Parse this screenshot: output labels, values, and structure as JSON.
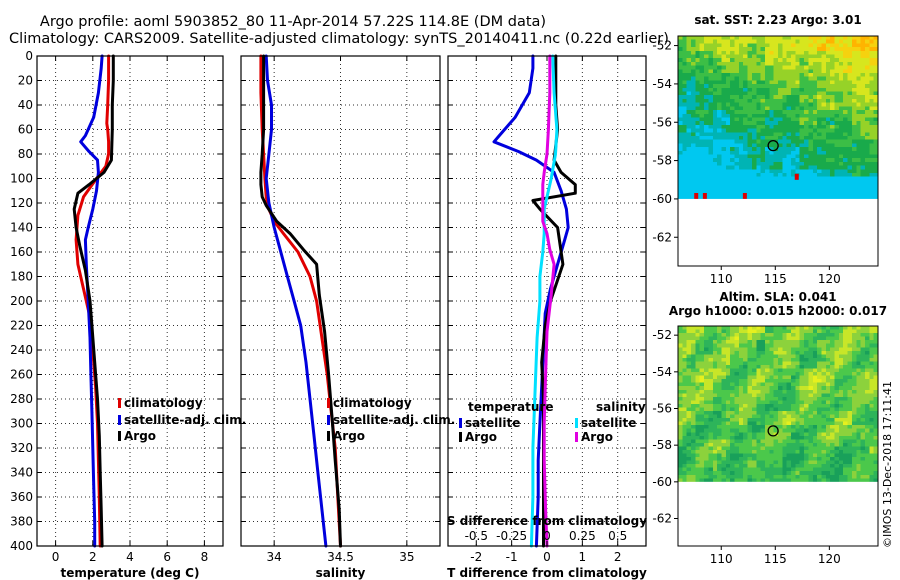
{
  "header": {
    "line1": "Argo profile: aoml 5903852_80 11-Apr-2014 57.22S 114.8E (DM data)",
    "line2": "Climatology: CARS2009. Satellite-adjusted climatology: synTS_20140411.nc (0.22d earlier)"
  },
  "credit": "©IMOS 13-Dec-2018 17:11:41",
  "colors": {
    "climatology": "#e00000",
    "satellite": "#0000dd",
    "argo": "#000000",
    "salinity_satellite": "#00e0ff",
    "salinity_argo": "#e000e0",
    "missing": "#ffffff"
  },
  "chart_data": [
    {
      "id": "temperature",
      "type": "line",
      "xlabel": "temperature (deg C)",
      "ylabel": "",
      "xlim": [
        -1,
        9
      ],
      "ylim": [
        400,
        0
      ],
      "xticks": [
        0,
        2,
        4,
        6,
        8
      ],
      "xtick_labels": [
        "0",
        "2",
        "4",
        "6",
        "8"
      ],
      "yticks": [
        0,
        20,
        40,
        60,
        80,
        100,
        120,
        140,
        160,
        180,
        200,
        220,
        240,
        260,
        280,
        300,
        320,
        340,
        360,
        380,
        400
      ],
      "grid": true,
      "legend": {
        "placement": "center-right",
        "entries": [
          {
            "name": "climatology",
            "series": "climatology"
          },
          {
            "name": "satellite-adj. clim.",
            "series": "satellite"
          },
          {
            "name": "Argo",
            "series": "argo"
          }
        ]
      },
      "series": [
        {
          "name": "climatology",
          "color_key": "climatology",
          "x": [
            2.85,
            2.85,
            2.8,
            2.75,
            2.8,
            2.85,
            2.85,
            2.7,
            2.2,
            1.5,
            1.2,
            1.1,
            1.2,
            1.5,
            1.8,
            2.0,
            2.15,
            2.25,
            2.3,
            2.35,
            2.4
          ],
          "y": [
            0,
            20,
            40,
            55,
            60,
            70,
            80,
            90,
            100,
            115,
            130,
            150,
            170,
            190,
            210,
            240,
            270,
            300,
            330,
            360,
            400
          ]
        },
        {
          "name": "satellite-adj. clim.",
          "color_key": "satellite",
          "x": [
            2.5,
            2.45,
            2.3,
            2.05,
            1.6,
            1.35,
            1.8,
            2.25,
            2.3,
            2.2,
            2.0,
            1.75,
            1.6,
            1.65,
            1.75,
            1.85,
            1.9,
            1.95,
            2.0,
            2.05,
            2.1,
            2.1
          ],
          "y": [
            0,
            10,
            30,
            50,
            65,
            70,
            78,
            85,
            95,
            110,
            125,
            140,
            150,
            170,
            200,
            230,
            260,
            290,
            320,
            350,
            380,
            400
          ]
        },
        {
          "name": "Argo",
          "color_key": "argo",
          "x": [
            3.1,
            3.1,
            3.05,
            3.05,
            3.0,
            2.6,
            1.8,
            1.2,
            1.0,
            1.1,
            1.3,
            1.6,
            1.85,
            1.95,
            2.1,
            2.25,
            2.35,
            2.4,
            2.45,
            2.5
          ],
          "y": [
            0,
            20,
            40,
            60,
            85,
            95,
            105,
            112,
            125,
            140,
            155,
            175,
            200,
            220,
            250,
            280,
            310,
            340,
            370,
            400
          ]
        }
      ]
    },
    {
      "id": "salinity",
      "type": "line",
      "xlabel": "salinity",
      "ylabel": "",
      "xlim": [
        33.75,
        35.25
      ],
      "ylim": [
        400,
        0
      ],
      "xticks": [
        34,
        34.5,
        35
      ],
      "xtick_labels": [
        "34",
        "34.5",
        "35"
      ],
      "grid": true,
      "legend": {
        "placement": "bottom-right",
        "entries": [
          {
            "name": "climatology",
            "series": "climatology"
          },
          {
            "name": "satellite-adj. clim.",
            "series": "satellite"
          },
          {
            "name": "Argo",
            "series": "argo"
          }
        ]
      },
      "series": [
        {
          "name": "climatology",
          "color_key": "climatology",
          "x": [
            33.9,
            33.9,
            33.91,
            33.92,
            33.93,
            33.94,
            33.96,
            34.0,
            34.07,
            34.18,
            34.27,
            34.32,
            34.36,
            34.4,
            34.43,
            34.46,
            34.48,
            34.5
          ],
          "y": [
            0,
            30,
            60,
            80,
            100,
            115,
            125,
            135,
            145,
            160,
            180,
            200,
            230,
            260,
            290,
            320,
            360,
            400
          ]
        },
        {
          "name": "satellite-adj. clim.",
          "color_key": "satellite",
          "x": [
            33.94,
            33.95,
            33.98,
            33.98,
            33.96,
            33.94,
            33.96,
            34.0,
            34.05,
            34.1,
            34.15,
            34.2,
            34.24,
            34.27,
            34.3,
            34.33,
            34.36,
            34.39
          ],
          "y": [
            0,
            20,
            40,
            60,
            80,
            100,
            120,
            140,
            160,
            180,
            200,
            220,
            250,
            280,
            310,
            340,
            370,
            400
          ]
        },
        {
          "name": "Argo",
          "color_key": "argo",
          "x": [
            33.92,
            33.92,
            33.92,
            33.91,
            33.9,
            33.9,
            33.91,
            33.94,
            34.02,
            34.12,
            34.22,
            34.32,
            34.34,
            34.38,
            34.41,
            34.44,
            34.46,
            34.49,
            34.5
          ],
          "y": [
            0,
            30,
            60,
            80,
            95,
            105,
            115,
            122,
            135,
            145,
            158,
            170,
            195,
            225,
            260,
            300,
            330,
            370,
            400
          ]
        }
      ]
    },
    {
      "id": "difference",
      "type": "line",
      "xlabel": "T difference from climatology",
      "xlabel_top": "S difference from climatology",
      "ylabel": "",
      "xlim": [
        -2.8,
        2.8
      ],
      "ylim": [
        400,
        0
      ],
      "xticks": [
        -2,
        -1,
        0,
        1,
        2
      ],
      "xtick_labels": [
        "-2",
        "-1",
        "0",
        "1",
        "2"
      ],
      "xticks_s": [
        -0.5,
        -0.25,
        0,
        0.25,
        0.5
      ],
      "xtick_labels_s": [
        "-0.5",
        "-0.25",
        "0",
        "0.25",
        "0.5"
      ],
      "grid": true,
      "legend": {
        "temperature_title": "temperature",
        "salinity_title": "salinity",
        "entries": [
          {
            "name": "satellite",
            "series": "temp-satellite"
          },
          {
            "name": "Argo",
            "series": "temp-argo"
          },
          {
            "name": "satellite",
            "series": "sal-satellite"
          },
          {
            "name": "Argo",
            "series": "sal-argo"
          }
        ]
      },
      "series": [
        {
          "name": "temp-satellite",
          "color_key": "satellite",
          "x": [
            -0.4,
            -0.4,
            -0.5,
            -0.9,
            -1.35,
            -1.5,
            -0.8,
            -0.3,
            0.2,
            0.4,
            0.55,
            0.6,
            0.5,
            0.3,
            0.1,
            -0.05,
            -0.1,
            -0.15,
            -0.2,
            -0.25,
            -0.25,
            -0.3
          ],
          "y": [
            0,
            10,
            30,
            50,
            65,
            70,
            78,
            85,
            95,
            110,
            125,
            140,
            150,
            170,
            190,
            210,
            240,
            270,
            300,
            330,
            360,
            400
          ]
        },
        {
          "name": "temp-argo",
          "color_key": "argo",
          "x": [
            0.25,
            0.25,
            0.25,
            0.3,
            0.2,
            0.4,
            0.8,
            0.8,
            -0.4,
            -0.2,
            0.3,
            0.45,
            0.1,
            -0.05,
            -0.15,
            -0.1,
            -0.1,
            -0.1,
            -0.1,
            -0.1
          ],
          "y": [
            0,
            20,
            40,
            60,
            85,
            95,
            105,
            112,
            118,
            125,
            140,
            170,
            200,
            220,
            250,
            280,
            310,
            340,
            370,
            400
          ]
        },
        {
          "name": "sal-satellite",
          "color_key": "salinity_satellite",
          "x": [
            0.04,
            0.05,
            0.07,
            0.06,
            0.03,
            0.0,
            -0.02,
            -0.02,
            -0.02,
            -0.03,
            -0.05,
            -0.05,
            -0.07,
            -0.08,
            -0.09,
            -0.1,
            -0.1,
            -0.11
          ],
          "y": [
            0,
            30,
            60,
            80,
            100,
            115,
            125,
            135,
            145,
            160,
            180,
            200,
            230,
            260,
            290,
            320,
            360,
            400
          ]
        },
        {
          "name": "sal-argo",
          "color_key": "salinity_argo",
          "x": [
            0.02,
            0.02,
            0.01,
            0.0,
            -0.02,
            -0.03,
            -0.03,
            -0.03,
            -0.03,
            0.0,
            0.02,
            0.05,
            0.03,
            0.0,
            -0.01,
            -0.02,
            -0.02,
            -0.01,
            0.0
          ],
          "y": [
            0,
            30,
            60,
            80,
            95,
            105,
            115,
            122,
            135,
            145,
            158,
            170,
            195,
            225,
            260,
            300,
            330,
            370,
            400
          ]
        }
      ]
    },
    {
      "id": "sst_map",
      "type": "heatmap",
      "title": "sat. SST: 2.23 Argo: 3.01",
      "xlim": [
        106,
        124.5
      ],
      "ylim": [
        -63.5,
        -51.5
      ],
      "xticks": [
        110,
        115,
        120
      ],
      "xtick_labels": [
        "110",
        "115",
        "120"
      ],
      "yticks": [
        -52,
        -54,
        -56,
        -58,
        -60,
        -62
      ],
      "ytick_labels": [
        "-52",
        "-54",
        "-56",
        "-58",
        "-60",
        "-62"
      ],
      "data_south_limit": -60,
      "marker": {
        "lon": 114.8,
        "lat": -57.22
      },
      "palette": [
        "#00c8f0",
        "#00b4b4",
        "#19aa4b",
        "#3cbe46",
        "#96d228",
        "#d7e61e",
        "#f5d20f",
        "#ffb400"
      ]
    },
    {
      "id": "sla_map",
      "type": "heatmap",
      "title": "Altim. SLA: 0.041",
      "subtitle": "Argo h1000: 0.015 h2000: 0.017",
      "xlim": [
        106,
        124.5
      ],
      "ylim": [
        -63.5,
        -51.5
      ],
      "xticks": [
        110,
        115,
        120
      ],
      "xtick_labels": [
        "110",
        "115",
        "120"
      ],
      "yticks": [
        -52,
        -54,
        -56,
        -58,
        -60,
        -62
      ],
      "ytick_labels": [
        "-52",
        "-54",
        "-56",
        "-58",
        "-60",
        "-62"
      ],
      "data_south_limit": -60,
      "marker": {
        "lon": 114.8,
        "lat": -57.22
      },
      "palette": [
        "#19a05a",
        "#2db45a",
        "#4bc84b",
        "#8cd23c",
        "#c8e628",
        "#e6f01e"
      ]
    }
  ]
}
